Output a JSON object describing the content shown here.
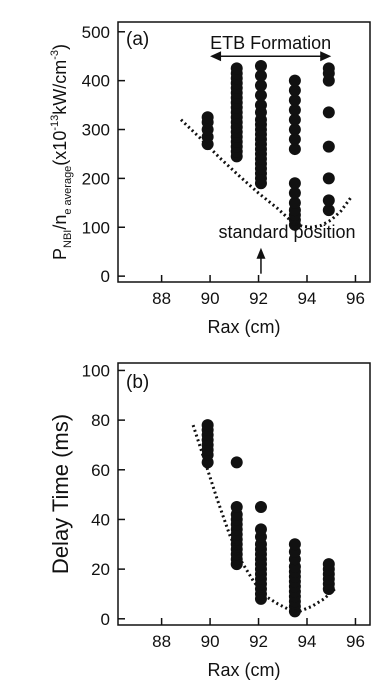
{
  "chart_data": [
    {
      "type": "scatter",
      "panel_label": "(a)",
      "title": "",
      "xlabel": "Rax (cm)",
      "ylabel": {
        "main": "P",
        "sub1": "NBI",
        "mid": "/n",
        "sub2": "e average",
        "unit_open": "(x10",
        "exp1": "-13",
        "unit_mid": "kW/cm",
        "exp2": "-3",
        "unit_close": ")"
      },
      "xlim": [
        86.2,
        96.6
      ],
      "ylim": [
        -12,
        520
      ],
      "xticks": [
        88,
        90,
        92,
        94,
        96
      ],
      "yticks": [
        0,
        100,
        200,
        300,
        400,
        500
      ],
      "grid": false,
      "annotations": {
        "formation": "ETB Formation",
        "standard": "standard position"
      },
      "formation_range": [
        90.0,
        95.0
      ],
      "formation_y": 450,
      "standard_x": 92.1,
      "standard_arrow_y": [
        5,
        58
      ],
      "points": [
        {
          "x": 89.9,
          "y": [
            270,
            285,
            300,
            315,
            325
          ]
        },
        {
          "x": 91.1,
          "y": [
            245,
            255,
            265,
            275,
            285,
            295,
            305,
            315,
            325,
            335,
            345,
            355,
            365,
            375,
            385,
            395,
            405,
            415,
            425
          ]
        },
        {
          "x": 92.1,
          "y": [
            190,
            200,
            210,
            220,
            230,
            240,
            250,
            260,
            270,
            280,
            290,
            300,
            310,
            320,
            335,
            350,
            370,
            390,
            410,
            430
          ]
        },
        {
          "x": 93.5,
          "y": [
            105,
            115,
            125,
            135,
            150,
            170,
            190,
            260,
            280,
            300,
            320,
            340,
            360,
            380,
            400
          ]
        },
        {
          "x": 94.9,
          "y": [
            135,
            155,
            200,
            265,
            335,
            400,
            415,
            425
          ]
        }
      ],
      "boundary": {
        "x": [
          88.8,
          89.6,
          90.4,
          91.2,
          92.0,
          92.8,
          93.4,
          93.8,
          94.2,
          94.6,
          95.0,
          95.4,
          95.8
        ],
        "y": [
          320,
          282,
          242,
          205,
          170,
          138,
          110,
          102,
          100,
          104,
          115,
          133,
          160
        ]
      }
    },
    {
      "type": "scatter",
      "panel_label": "(b)",
      "title": "",
      "xlabel": "Rax (cm)",
      "ylabel": "Delay Time (ms)",
      "xlim": [
        86.2,
        96.6
      ],
      "ylim": [
        -2.5,
        103
      ],
      "xticks": [
        88,
        90,
        92,
        94,
        96
      ],
      "yticks": [
        0,
        20,
        40,
        60,
        80,
        100
      ],
      "grid": false,
      "points": [
        {
          "x": 89.9,
          "y": [
            63,
            66,
            68,
            70,
            72,
            74,
            76,
            78
          ]
        },
        {
          "x": 91.1,
          "y": [
            22,
            24,
            26,
            28,
            30,
            32,
            34,
            36,
            38,
            40,
            42,
            45,
            63
          ]
        },
        {
          "x": 92.1,
          "y": [
            8,
            10,
            12,
            14,
            16,
            18,
            20,
            22,
            24,
            26,
            28,
            30,
            33,
            36,
            45
          ]
        },
        {
          "x": 93.5,
          "y": [
            3,
            5,
            7,
            9,
            11,
            13,
            15,
            17,
            19,
            21,
            24,
            27,
            30
          ]
        },
        {
          "x": 94.9,
          "y": [
            12,
            14,
            16,
            18,
            20,
            22
          ]
        }
      ],
      "boundary": {
        "x": [
          89.3,
          89.8,
          90.3,
          90.8,
          91.3,
          91.8,
          92.3,
          92.8,
          93.3,
          93.7,
          94.2,
          94.7,
          95.2
        ],
        "y": [
          78,
          63,
          48,
          34,
          23,
          15,
          9,
          6,
          3.5,
          3,
          5,
          8,
          12.5
        ]
      }
    }
  ]
}
